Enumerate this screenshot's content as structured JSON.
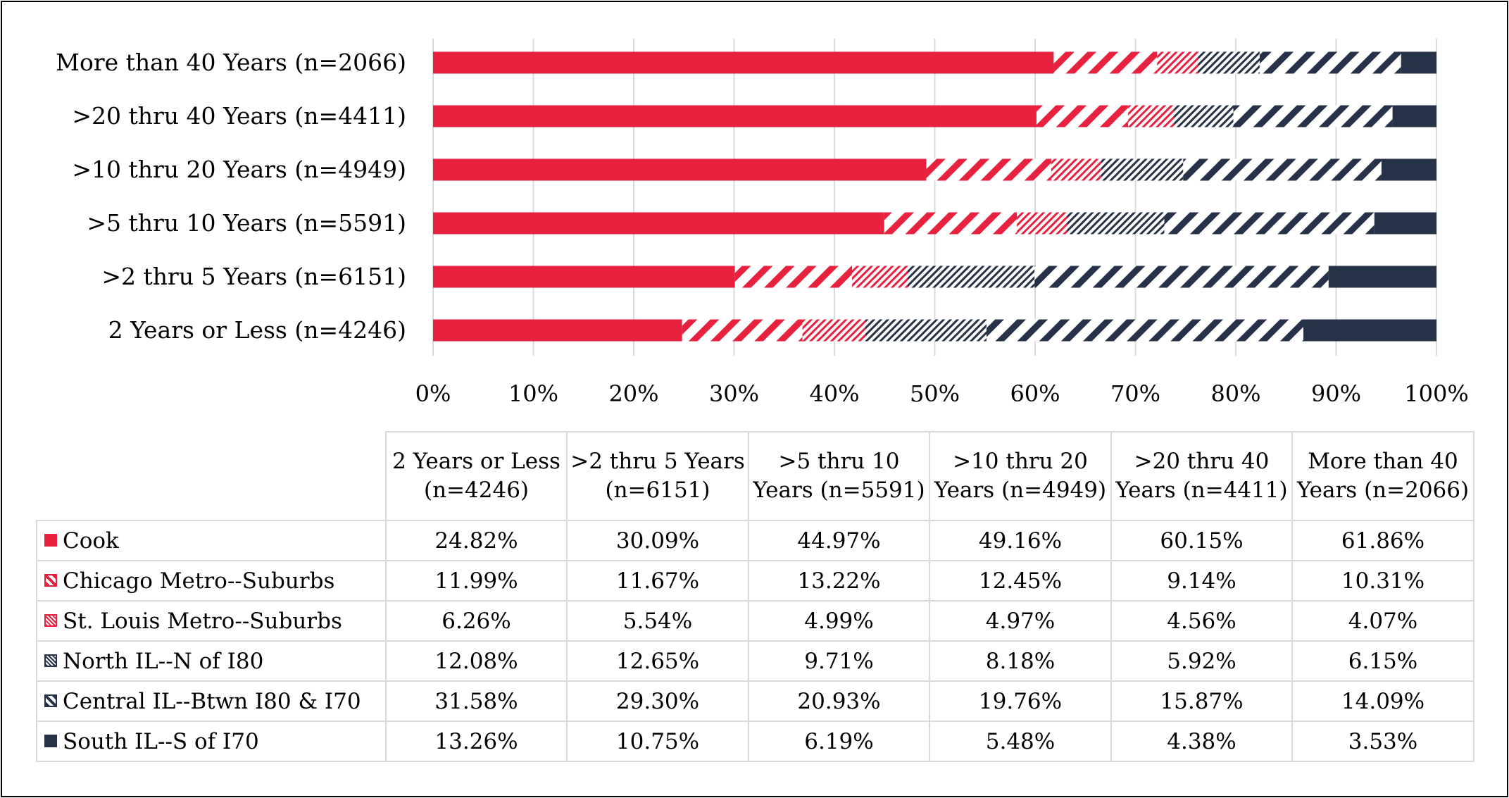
{
  "colors": {
    "red": "#e8213f",
    "navy": "#263248",
    "grid": "#d9d9d9",
    "table_border": "#d9d9d9"
  },
  "chart_data": {
    "type": "bar",
    "orientation": "horizontal",
    "stacked": "percent",
    "categories": [
      "More than 40 Years (n=2066)",
      ">20 thru 40 Years (n=4411)",
      ">10 thru 20 Years (n=4949)",
      ">5 thru 10 Years (n=5591)",
      ">2 thru 5 Years (n=6151)",
      "2 Years or Less (n=4246)"
    ],
    "series": [
      {
        "name": "Cook",
        "color": "#e8213f",
        "pattern": "solid-red",
        "values": [
          61.86,
          60.15,
          49.16,
          44.97,
          30.09,
          24.82
        ]
      },
      {
        "name": "Chicago Metro--Suburbs",
        "color": "#e8213f",
        "pattern": "wide-diagonal-red",
        "values": [
          10.31,
          9.14,
          12.45,
          13.22,
          11.67,
          11.99
        ]
      },
      {
        "name": "St. Louis Metro--Suburbs",
        "color": "#e8213f",
        "pattern": "narrow-diagonal-red",
        "values": [
          4.07,
          4.56,
          4.97,
          4.99,
          5.54,
          6.26
        ]
      },
      {
        "name": "North IL--N of I80",
        "color": "#263248",
        "pattern": "narrow-diagonal-navy",
        "values": [
          6.15,
          5.92,
          8.18,
          9.71,
          12.65,
          12.08
        ]
      },
      {
        "name": "Central IL--Btwn I80 & I70",
        "color": "#263248",
        "pattern": "wide-diagonal-navy",
        "values": [
          14.09,
          15.87,
          19.76,
          20.93,
          29.3,
          31.58
        ]
      },
      {
        "name": "South IL--S of I70",
        "color": "#263248",
        "pattern": "solid-navy",
        "values": [
          3.53,
          4.38,
          5.48,
          6.19,
          10.75,
          13.26
        ]
      }
    ],
    "xlim": [
      0,
      100
    ],
    "x_ticks": [
      "0%",
      "10%",
      "20%",
      "30%",
      "40%",
      "50%",
      "60%",
      "70%",
      "80%",
      "90%",
      "100%"
    ],
    "grid": true,
    "legend": "data-table-below",
    "title": "",
    "xlabel": "",
    "ylabel": ""
  },
  "table": {
    "headers": [
      "2 Years or Less (n=4246)",
      ">2 thru 5 Years (n=6151)",
      ">5 thru 10 Years (n=5591)",
      ">10 thru 20 Years (n=4949)",
      ">20 thru 40 Years (n=4411)",
      "More than 40 Years (n=2066)"
    ],
    "rows": [
      {
        "label": "Cook",
        "key": "solid-red",
        "cells": [
          "24.82%",
          "30.09%",
          "44.97%",
          "49.16%",
          "60.15%",
          "61.86%"
        ]
      },
      {
        "label": "Chicago Metro--Suburbs",
        "key": "wide-diagonal-red",
        "cells": [
          "11.99%",
          "11.67%",
          "13.22%",
          "12.45%",
          "9.14%",
          "10.31%"
        ]
      },
      {
        "label": "St. Louis Metro--Suburbs",
        "key": "narrow-diagonal-red",
        "cells": [
          "6.26%",
          "5.54%",
          "4.99%",
          "4.97%",
          "4.56%",
          "4.07%"
        ]
      },
      {
        "label": "North IL--N of I80",
        "key": "narrow-diagonal-navy",
        "cells": [
          "12.08%",
          "12.65%",
          "9.71%",
          "8.18%",
          "5.92%",
          "6.15%"
        ]
      },
      {
        "label": "Central IL--Btwn I80 & I70",
        "key": "wide-diagonal-navy",
        "cells": [
          "31.58%",
          "29.30%",
          "20.93%",
          "19.76%",
          "15.87%",
          "14.09%"
        ]
      },
      {
        "label": "South IL--S of I70",
        "key": "solid-navy",
        "cells": [
          "13.26%",
          "10.75%",
          "6.19%",
          "5.48%",
          "4.38%",
          "3.53%"
        ]
      }
    ]
  }
}
